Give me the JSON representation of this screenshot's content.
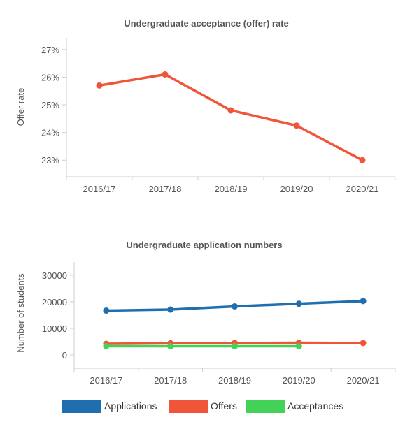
{
  "chart_data": [
    {
      "type": "line",
      "title": "Undergraduate acceptance (offer) rate",
      "xlabel": "",
      "ylabel": "Offer rate",
      "categories": [
        "2016/17",
        "2017/18",
        "2018/19",
        "2019/20",
        "2020/21"
      ],
      "ylim": [
        22.4,
        27.4
      ],
      "yticks": [
        23,
        24,
        25,
        26,
        27
      ],
      "ytick_labels": [
        "23%",
        "24%",
        "25%",
        "26%",
        "27%"
      ],
      "grid": false,
      "series": [
        {
          "values": [
            25.7,
            26.1,
            24.8,
            24.25,
            23.0
          ],
          "color": "#f0553a"
        }
      ]
    },
    {
      "type": "line",
      "title": "Undergraduate application numbers",
      "xlabel": "",
      "ylabel": "Number of students",
      "categories": [
        "2016/17",
        "2017/18",
        "2018/19",
        "2019/20",
        "2020/21"
      ],
      "ylim": [
        -5000,
        35000
      ],
      "yticks": [
        0,
        10000,
        20000,
        30000
      ],
      "ytick_labels": [
        "0",
        "10000",
        "20000",
        "30000"
      ],
      "grid": false,
      "legend_position": "bottom",
      "series": [
        {
          "name": "Applications",
          "values": [
            16700,
            17100,
            18300,
            19300,
            20300
          ],
          "color": "#1f6fb0"
        },
        {
          "name": "Offers",
          "values": [
            4200,
            4400,
            4500,
            4600,
            4500
          ],
          "color": "#f0553a"
        },
        {
          "name": "Acceptances",
          "values": [
            3300,
            3300,
            3300,
            3300,
            null
          ],
          "color": "#44d158"
        }
      ]
    }
  ]
}
